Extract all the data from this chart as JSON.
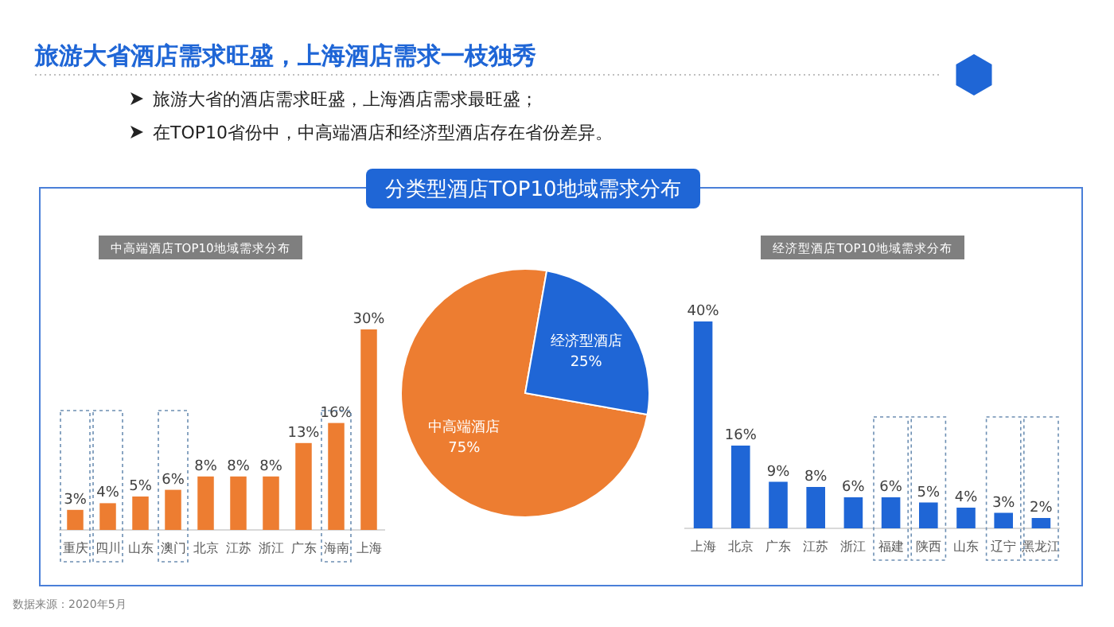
{
  "chart_data": [
    {
      "type": "other",
      "title": "旅游大省酒店需求旺盛，上海酒店需求一枝独秀",
      "annotations": [
        "旅游大省的酒店需求旺盛，上海酒店需求最旺盛；",
        "在TOP10省份中，中高端酒店和经济型酒店存在省份差异。",
        "数据来源：2020年5月"
      ]
    },
    {
      "type": "bar",
      "title": "中高端酒店TOP10地域需求分布",
      "categories": [
        "重庆",
        "四川",
        "山东",
        "澳门",
        "北京",
        "江苏",
        "浙江",
        "广东",
        "海南",
        "上海"
      ],
      "values": [
        3,
        4,
        5,
        6,
        8,
        8,
        8,
        13,
        16,
        30
      ],
      "value_labels": [
        "3%",
        "4%",
        "5%",
        "6%",
        "8%",
        "8%",
        "8%",
        "13%",
        "16%",
        "30%"
      ],
      "color": "#ed7d31"
    },
    {
      "type": "pie",
      "title": "分类型酒店TOP10地域需求分布",
      "categories": [
        "中高端酒店",
        "经济型酒店"
      ],
      "values": [
        75,
        25
      ],
      "value_labels": [
        "75%",
        "25%"
      ],
      "colors": [
        "#ed7d31",
        "#1f66d6"
      ]
    },
    {
      "type": "bar",
      "title": "经济型酒店TOP10地域需求分布",
      "categories": [
        "上海",
        "北京",
        "广东",
        "江苏",
        "浙江",
        "福建",
        "陕西",
        "山东",
        "辽宁",
        "黑龙江"
      ],
      "values": [
        40,
        16,
        9,
        8,
        6,
        6,
        5,
        4,
        3,
        2
      ],
      "value_labels": [
        "40%",
        "16%",
        "9%",
        "8%",
        "6%",
        "6%",
        "5%",
        "4%",
        "3%",
        "2%"
      ],
      "color": "#1f66d6"
    }
  ]
}
